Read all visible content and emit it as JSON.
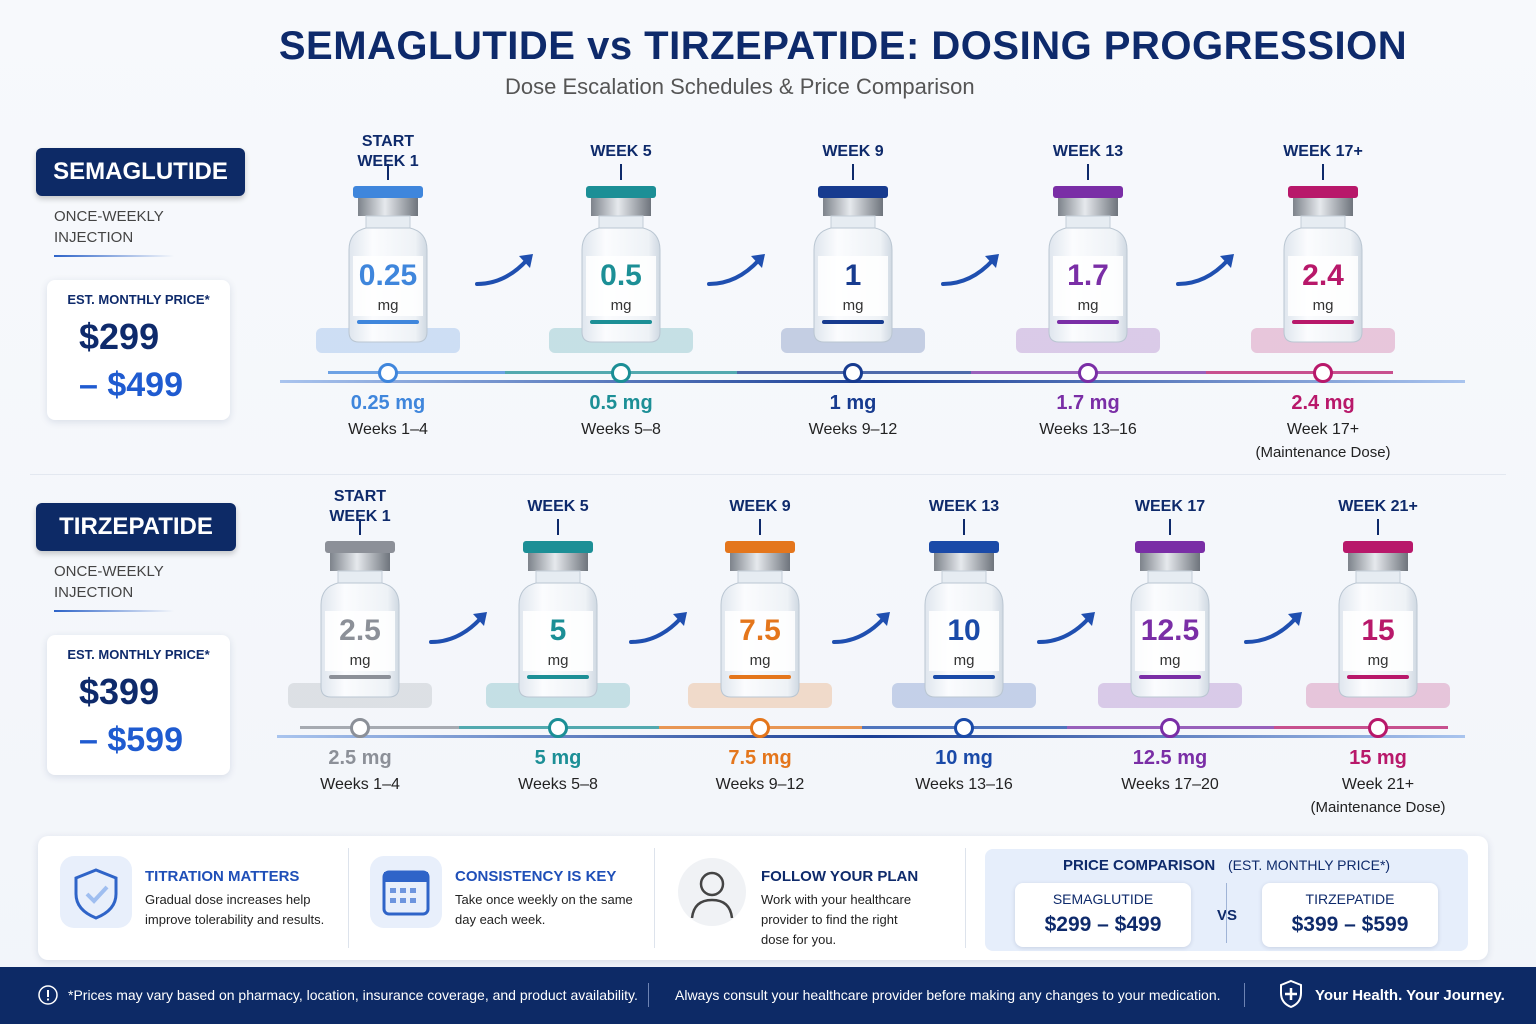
{
  "header": {
    "title": "SEMAGLUTIDE vs TIRZEPATIDE: DOSING PROGRESSION",
    "subtitle": "Dose Escalation Schedules & Price Comparison"
  },
  "drugs": [
    {
      "name": "SEMAGLUTIDE",
      "frequency": "ONCE-WEEKLY INJECTION",
      "price_label": "EST. MONTHLY PRICE*",
      "price_low": "$299",
      "price_high": "– $499",
      "steps": [
        {
          "week": "START\nWEEK 1",
          "dose": "0.25",
          "unit": "mg",
          "dose_label": "0.25 mg",
          "weeks": "Weeks 1–4",
          "color": "#3f86dc"
        },
        {
          "week": "WEEK 5",
          "dose": "0.5",
          "unit": "mg",
          "dose_label": "0.5 mg",
          "weeks": "Weeks 5–8",
          "color": "#1c8f96"
        },
        {
          "week": "WEEK 9",
          "dose": "1",
          "unit": "mg",
          "dose_label": "1 mg",
          "weeks": "Weeks 9–12",
          "color": "#173b8f"
        },
        {
          "week": "WEEK 13",
          "dose": "1.7",
          "unit": "mg",
          "dose_label": "1.7 mg",
          "weeks": "Weeks 13–16",
          "color": "#7a2ea6"
        },
        {
          "week": "WEEK 17+",
          "dose": "2.4",
          "unit": "mg",
          "dose_label": "2.4 mg",
          "weeks": "Week 17+",
          "note": "(Maintenance Dose)",
          "color": "#b8186a"
        }
      ]
    },
    {
      "name": "TIRZEPATIDE",
      "frequency": "ONCE-WEEKLY INJECTION",
      "price_label": "EST. MONTHLY PRICE*",
      "price_low": "$399",
      "price_high": "– $599",
      "steps": [
        {
          "week": "START\nWEEK 1",
          "dose": "2.5",
          "unit": "mg",
          "dose_label": "2.5 mg",
          "weeks": "Weeks 1–4",
          "color": "#8c9098"
        },
        {
          "week": "WEEK 5",
          "dose": "5",
          "unit": "mg",
          "dose_label": "5 mg",
          "weeks": "Weeks 5–8",
          "color": "#1c8f96"
        },
        {
          "week": "WEEK 9",
          "dose": "7.5",
          "unit": "mg",
          "dose_label": "7.5 mg",
          "weeks": "Weeks 9–12",
          "color": "#e4761c"
        },
        {
          "week": "WEEK 13",
          "dose": "10",
          "unit": "mg",
          "dose_label": "10 mg",
          "weeks": "Weeks 13–16",
          "color": "#1a4aa8"
        },
        {
          "week": "WEEK 17",
          "dose": "12.5",
          "unit": "mg",
          "dose_label": "12.5 mg",
          "weeks": "Weeks 17–20",
          "color": "#7a2ea6"
        },
        {
          "week": "WEEK 21+",
          "dose": "15",
          "unit": "mg",
          "dose_label": "15 mg",
          "weeks": "Week 21+",
          "note": "(Maintenance Dose)",
          "color": "#b8186a"
        }
      ]
    }
  ],
  "tips": [
    {
      "title": "TITRATION MATTERS",
      "text": "Gradual dose increases help improve tolerability and results."
    },
    {
      "title": "CONSISTENCY IS KEY",
      "text": "Take once weekly on the same day each week."
    },
    {
      "title": "FOLLOW YOUR PLAN",
      "text": "Work with your healthcare provider to find the right dose for you."
    }
  ],
  "price_comparison": {
    "title": "PRICE COMPARISON",
    "subtitle": "(EST. MONTHLY PRICE*)",
    "vs": "VS",
    "items": [
      {
        "name": "SEMAGLUTIDE",
        "range": "$299 – $499"
      },
      {
        "name": "TIRZEPATIDE",
        "range": "$399 – $599"
      }
    ]
  },
  "footer": {
    "disclaimer": "*Prices may vary based on pharmacy, location, insurance coverage, and product availability.",
    "advice": "Always consult your healthcare provider before making any changes to your medication.",
    "tagline": "Your Health. Your Journey."
  }
}
